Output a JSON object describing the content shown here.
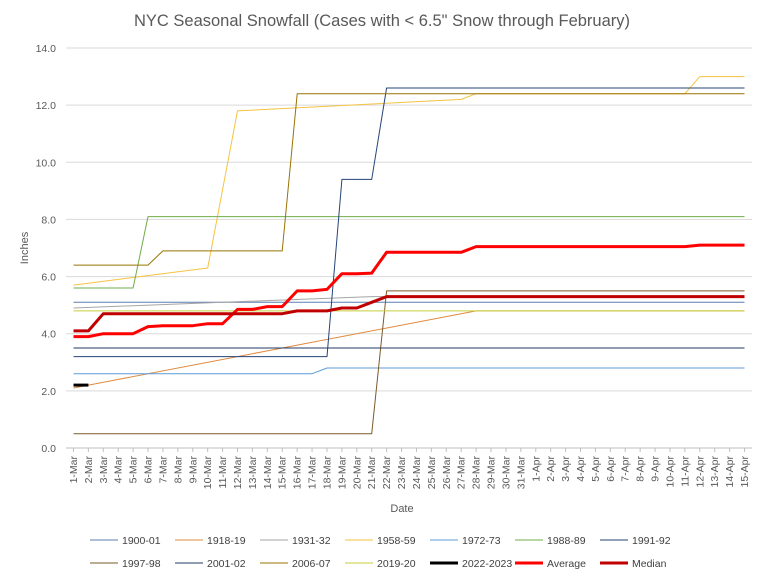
{
  "chart_data": {
    "type": "line",
    "title": "NYC Seasonal Snowfall (Cases with < 6.5\" Snow through February)",
    "xlabel": "Date",
    "ylabel": "Inches",
    "ylim": [
      0,
      14
    ],
    "yticks": [
      "0.0",
      "2.0",
      "4.0",
      "6.0",
      "8.0",
      "10.0",
      "12.0",
      "14.0"
    ],
    "grid": "horizontal",
    "legend_position": "bottom",
    "categories": [
      "1-Mar",
      "2-Mar",
      "3-Mar",
      "4-Mar",
      "5-Mar",
      "6-Mar",
      "7-Mar",
      "8-Mar",
      "9-Mar",
      "10-Mar",
      "11-Mar",
      "12-Mar",
      "13-Mar",
      "14-Mar",
      "15-Mar",
      "16-Mar",
      "17-Mar",
      "18-Mar",
      "19-Mar",
      "20-Mar",
      "21-Mar",
      "22-Mar",
      "23-Mar",
      "24-Mar",
      "25-Mar",
      "26-Mar",
      "27-Mar",
      "28-Mar",
      "29-Mar",
      "30-Mar",
      "31-Mar",
      "1-Apr",
      "2-Apr",
      "3-Apr",
      "4-Apr",
      "5-Apr",
      "6-Apr",
      "7-Apr",
      "8-Apr",
      "9-Apr",
      "10-Apr",
      "11-Apr",
      "12-Apr",
      "13-Apr",
      "14-Apr",
      "15-Apr"
    ],
    "series": [
      {
        "name": "1900-01",
        "color": "#5b7fb0",
        "width": 1,
        "steps": [
          [
            0,
            5.1
          ]
        ]
      },
      {
        "name": "1918-19",
        "color": "#e08a3e",
        "width": 1,
        "steps": [
          [
            0,
            2.1
          ],
          [
            13,
            3.4
          ],
          [
            27,
            4.8
          ]
        ]
      },
      {
        "name": "1931-32",
        "color": "#a5a5a5",
        "width": 1,
        "steps": [
          [
            0,
            4.9
          ],
          [
            20,
            5.3
          ]
        ]
      },
      {
        "name": "1958-59",
        "color": "#f5c342",
        "width": 1,
        "steps": [
          [
            0,
            5.7
          ],
          [
            9,
            6.3
          ],
          [
            11,
            11.8
          ],
          [
            26,
            12.2
          ],
          [
            27,
            12.4
          ],
          [
            41,
            12.4
          ],
          [
            42,
            13.0
          ]
        ]
      },
      {
        "name": "1972-73",
        "color": "#5b9bd5",
        "width": 1,
        "steps": [
          [
            0,
            2.6
          ],
          [
            16,
            2.6
          ],
          [
            17,
            2.8
          ]
        ]
      },
      {
        "name": "1988-89",
        "color": "#70ad47",
        "width": 1,
        "steps": [
          [
            0,
            5.6
          ],
          [
            4,
            5.6
          ],
          [
            5,
            8.1
          ]
        ]
      },
      {
        "name": "1991-92",
        "color": "#264478",
        "width": 1,
        "steps": [
          [
            0,
            3.2
          ],
          [
            17,
            3.2
          ],
          [
            18,
            9.4
          ],
          [
            20,
            9.4
          ],
          [
            21,
            12.6
          ]
        ]
      },
      {
        "name": "1997-98",
        "color": "#7b5a2a",
        "width": 1,
        "steps": [
          [
            0,
            0.5
          ],
          [
            20,
            0.5
          ],
          [
            21,
            5.5
          ]
        ]
      },
      {
        "name": "2001-02",
        "color": "#203864",
        "width": 1,
        "steps": [
          [
            0,
            3.5
          ]
        ]
      },
      {
        "name": "2006-07",
        "color": "#997300",
        "width": 1,
        "steps": [
          [
            0,
            6.4
          ],
          [
            5,
            6.4
          ],
          [
            6,
            6.9
          ],
          [
            14,
            6.9
          ],
          [
            15,
            12.4
          ]
        ]
      },
      {
        "name": "2019-20",
        "color": "#c5cf3a",
        "width": 1,
        "steps": [
          [
            0,
            4.8
          ]
        ]
      },
      {
        "name": "2022-2023",
        "color": "#000000",
        "width": 3,
        "steps": [
          [
            0,
            2.2
          ],
          [
            1,
            2.2
          ]
        ]
      },
      {
        "name": "Average",
        "color": "#ff0000",
        "width": 3,
        "steps": [
          [
            0,
            3.9
          ],
          [
            1,
            3.9
          ],
          [
            2,
            4.0
          ],
          [
            4,
            4.0
          ],
          [
            5,
            4.25
          ],
          [
            6,
            4.28
          ],
          [
            8,
            4.28
          ],
          [
            9,
            4.35
          ],
          [
            10,
            4.35
          ],
          [
            11,
            4.85
          ],
          [
            12,
            4.85
          ],
          [
            13,
            4.95
          ],
          [
            14,
            4.95
          ],
          [
            15,
            5.5
          ],
          [
            16,
            5.5
          ],
          [
            17,
            5.55
          ],
          [
            18,
            6.1
          ],
          [
            19,
            6.1
          ],
          [
            20,
            6.12
          ],
          [
            21,
            6.85
          ],
          [
            26,
            6.85
          ],
          [
            27,
            7.05
          ],
          [
            41,
            7.05
          ],
          [
            42,
            7.1
          ],
          [
            45,
            7.1
          ]
        ]
      },
      {
        "name": "Median",
        "color": "#c00000",
        "width": 3,
        "steps": [
          [
            0,
            4.1
          ],
          [
            1,
            4.1
          ],
          [
            2,
            4.7
          ],
          [
            14,
            4.7
          ],
          [
            15,
            4.8
          ],
          [
            17,
            4.8
          ],
          [
            18,
            4.9
          ],
          [
            19,
            4.9
          ],
          [
            20,
            5.1
          ],
          [
            21,
            5.3
          ],
          [
            45,
            5.3
          ]
        ]
      }
    ]
  }
}
